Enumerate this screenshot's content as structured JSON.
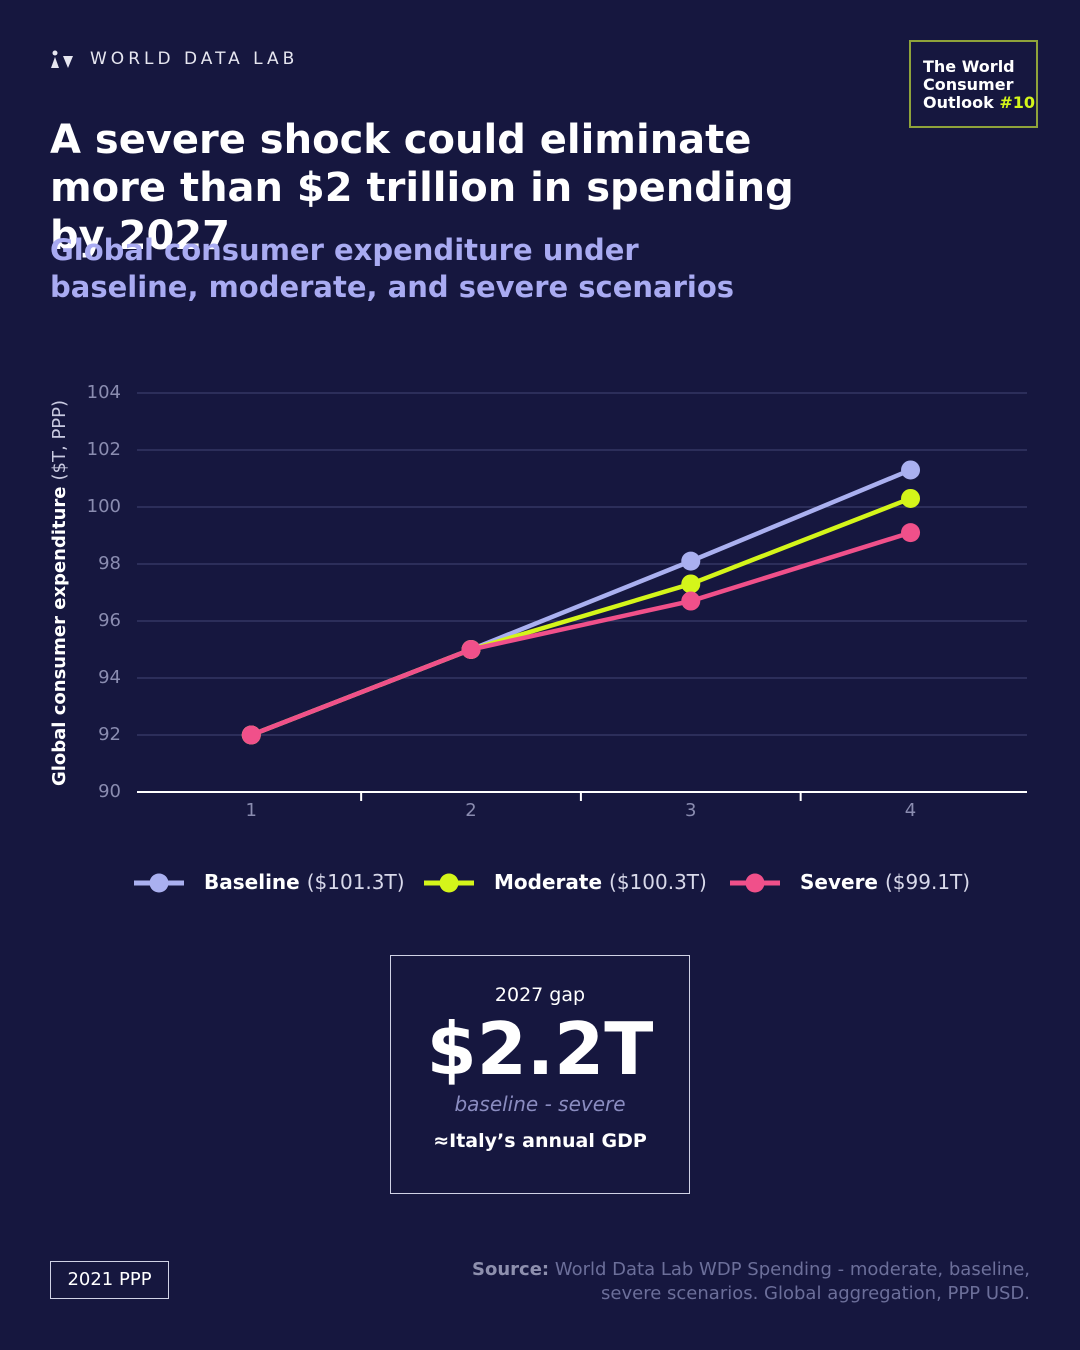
{
  "header": {
    "brand": "WORLD DATA LAB",
    "badge": {
      "text": "The World Consumer Outlook",
      "number": "#10"
    },
    "title": "A severe shock could eliminate more than $2 trillion in spending by 2027",
    "subtitle": "Global consumer expenditure under baseline, moderate, and severe scenarios"
  },
  "chart_data": {
    "type": "line",
    "y_label": {
      "main": "Global consumer expenditure",
      "unit": "($T, PPP)"
    },
    "x": [
      1,
      2,
      3,
      4
    ],
    "xlim": [
      0.48,
      4.53
    ],
    "xticks": [
      1,
      2,
      3,
      4
    ],
    "xminorticks": [
      1.5,
      2.5,
      3.5
    ],
    "ylim": [
      90,
      104
    ],
    "yticks": [
      90,
      92,
      94,
      96,
      98,
      100,
      102,
      104
    ],
    "grid": true,
    "series": [
      {
        "name": "Baseline",
        "label": "($101.3T)",
        "color": "#aab0f0",
        "values": [
          92.0,
          95.0,
          98.1,
          101.3
        ]
      },
      {
        "name": "Moderate",
        "label": "($100.3T)",
        "color": "#d4f51a",
        "values": [
          92.0,
          95.0,
          97.3,
          100.3
        ]
      },
      {
        "name": "Severe",
        "label": "($99.1T)",
        "color": "#f0508a",
        "values": [
          92.0,
          95.0,
          96.7,
          99.1
        ]
      }
    ]
  },
  "callout": {
    "label": "2027 gap",
    "value": "$2.2T",
    "note": "baseline - severe",
    "compare": "≈Italy’s annual GDP"
  },
  "footer": {
    "basis": "2021 PPP",
    "source_label": "Source:",
    "source": "World Data Lab WDP Spending - moderate, baseline, severe scenarios. Global aggregation, PPP USD."
  }
}
